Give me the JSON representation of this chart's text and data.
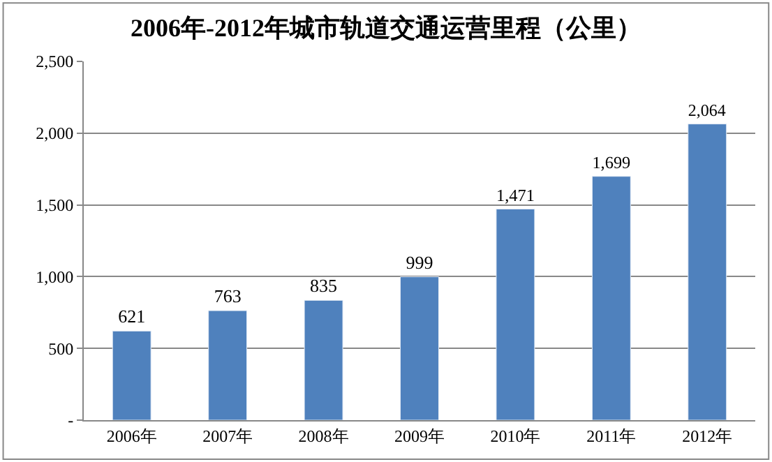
{
  "chart_data": {
    "type": "bar",
    "title": "2006年-2012年城市轨道交通运营里程（公里）",
    "categories": [
      "2006年",
      "2007年",
      "2008年",
      "2009年",
      "2010年",
      "2011年",
      "2012年"
    ],
    "values": [
      621,
      763,
      835,
      999,
      1471,
      1699,
      2064
    ],
    "value_labels": [
      "621",
      "763",
      "835",
      "999",
      "1,471",
      "1,699",
      "2,064"
    ],
    "color": "#4f81bd",
    "ylim": [
      0,
      2500
    ],
    "yticks": [
      {
        "value": 0,
        "label": "-"
      },
      {
        "value": 500,
        "label": "500"
      },
      {
        "value": 1000,
        "label": "1,000"
      },
      {
        "value": 1500,
        "label": "1,500"
      },
      {
        "value": 2000,
        "label": "2,000"
      },
      {
        "value": 2500,
        "label": "2,500"
      }
    ],
    "grid": "y"
  }
}
